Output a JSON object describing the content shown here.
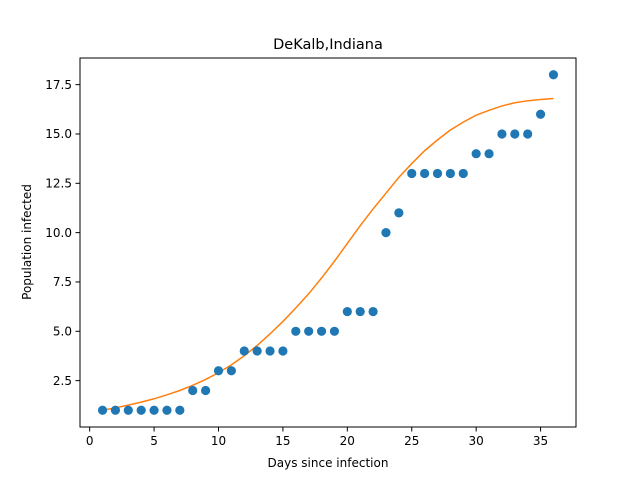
{
  "chart_data": {
    "type": "scatter",
    "title": "DeKalb,Indiana",
    "xlabel": "Days since infection",
    "ylabel": "Population infected",
    "xlim": [
      -0.75,
      37.75
    ],
    "ylim": [
      0.15,
      18.85
    ],
    "xticks": [
      0,
      5,
      10,
      15,
      20,
      25,
      30,
      35
    ],
    "xtick_labels": [
      "0",
      "5",
      "10",
      "15",
      "20",
      "25",
      "30",
      "35"
    ],
    "yticks": [
      2.5,
      5.0,
      7.5,
      10.0,
      12.5,
      15.0,
      17.5
    ],
    "ytick_labels": [
      "2.5",
      "5.0",
      "7.5",
      "10.0",
      "12.5",
      "15.0",
      "17.5"
    ],
    "grid": false,
    "colors": {
      "points": "#1f77b4",
      "fit": "#ff7f0e",
      "axes": "#000000",
      "background": "#ffffff"
    },
    "points": {
      "x": [
        1,
        2,
        3,
        4,
        5,
        6,
        7,
        8,
        9,
        10,
        11,
        12,
        13,
        14,
        15,
        16,
        17,
        18,
        19,
        20,
        21,
        22,
        23,
        24,
        25,
        26,
        27,
        28,
        29,
        30,
        31,
        32,
        33,
        34,
        35,
        36
      ],
      "y": [
        1,
        1,
        1,
        1,
        1,
        1,
        1,
        2,
        2,
        3,
        3,
        4,
        4,
        4,
        4,
        5,
        5,
        5,
        5,
        6,
        6,
        6,
        10,
        11,
        13,
        13,
        13,
        13,
        13,
        14,
        14,
        15,
        15,
        15,
        16,
        18
      ]
    },
    "fit_curve": {
      "x": [
        1,
        2,
        3,
        4,
        5,
        6,
        7,
        8,
        9,
        10,
        11,
        12,
        13,
        14,
        15,
        16,
        17,
        18,
        19,
        20,
        21,
        22,
        23,
        24,
        25,
        26,
        27,
        28,
        29,
        30,
        31,
        32,
        33,
        34,
        35,
        36
      ],
      "y": [
        1.0,
        1.12,
        1.26,
        1.41,
        1.58,
        1.78,
        2.0,
        2.26,
        2.56,
        2.9,
        3.3,
        3.76,
        4.28,
        4.87,
        5.5,
        6.18,
        6.9,
        7.7,
        8.55,
        9.45,
        10.35,
        11.2,
        12.0,
        12.8,
        13.5,
        14.15,
        14.7,
        15.2,
        15.6,
        15.95,
        16.2,
        16.42,
        16.58,
        16.68,
        16.75,
        16.8
      ]
    }
  }
}
